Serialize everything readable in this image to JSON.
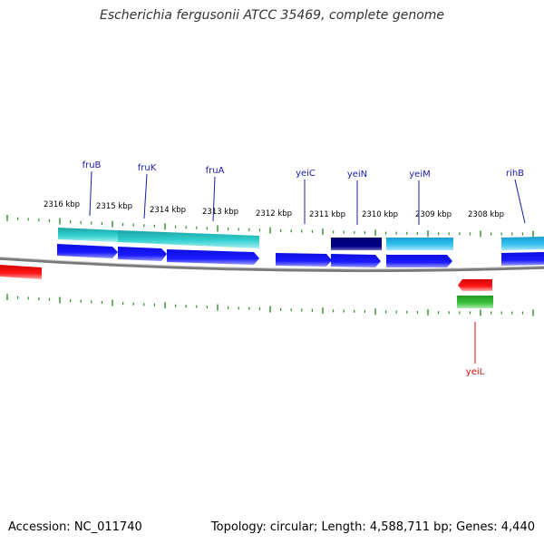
{
  "title": "Escherichia fergusonii ATCC 35469, complete genome",
  "accession_text": "Accession: NC_011740",
  "summary_text": "Topology: circular; Length: 4,588,711 bp; Genes: 4,440",
  "colors": {
    "backbone": "#808080",
    "tick": "#2e8b2e",
    "label_plus": "#1a1aaa",
    "label_minus": "#cc1111",
    "cds_forward": "#1a1aff",
    "cds_reverse": "#ee1111",
    "gene_forward_teal": "#33cccc",
    "gene_forward_cyan": "#33bbee",
    "gene_forward_navy": "#000088",
    "gene_reverse_green": "#33bb33"
  },
  "scale_labels": [
    "2316 kbp",
    "2315 kbp",
    "2314 kbp",
    "2313 kbp",
    "2312 kbp",
    "2311 kbp",
    "2310 kbp",
    "2309 kbp",
    "2308 kbp"
  ],
  "gene_labels": [
    {
      "name": "fruB",
      "strand": "forward"
    },
    {
      "name": "fruK",
      "strand": "forward"
    },
    {
      "name": "fruA",
      "strand": "forward"
    },
    {
      "name": "yeiC",
      "strand": "forward"
    },
    {
      "name": "yeiN",
      "strand": "forward"
    },
    {
      "name": "yeiM",
      "strand": "forward"
    },
    {
      "name": "rihB",
      "strand": "forward"
    },
    {
      "name": "yeiL",
      "strand": "reverse"
    }
  ]
}
